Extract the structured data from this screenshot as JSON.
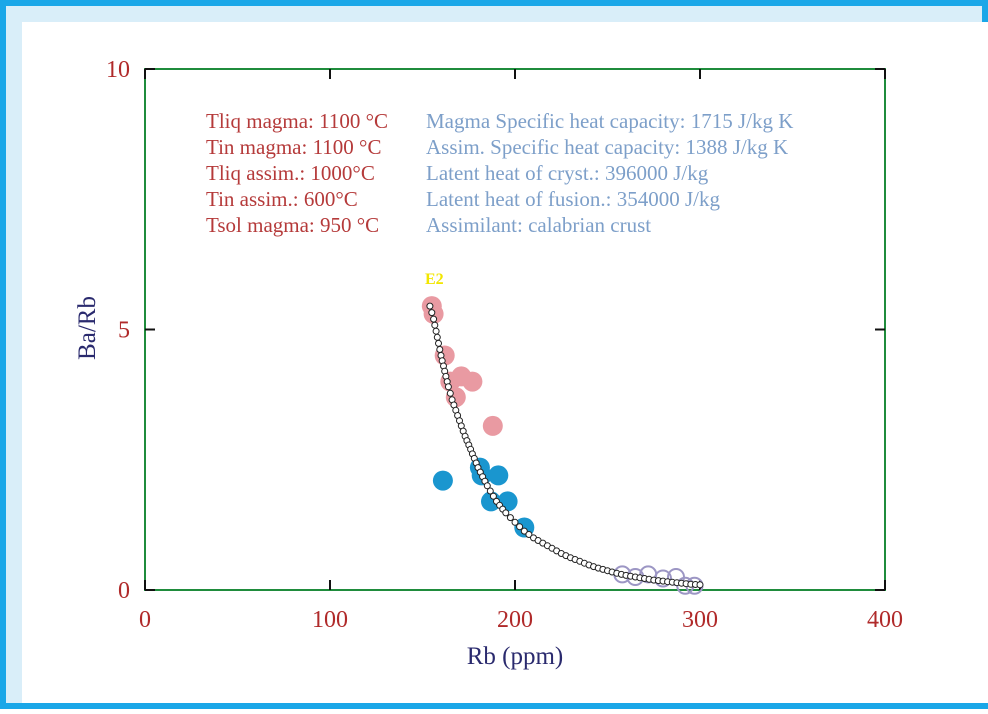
{
  "colors": {
    "frame": "#1aa7e8",
    "panel": "#d9eef9",
    "axes_frame": "#1f8c3c",
    "tick_label": "#b02a2a",
    "axis_title": "#2a2a6e",
    "param_red": "#b53a3a",
    "param_blue": "#7d9fc9",
    "pink_point": "#e99aa2",
    "blue_point": "#1a96cf",
    "hollow_point": "#9c96c4",
    "curve_point": "#222222",
    "start_label": "#f2e600"
  },
  "chart_data": {
    "type": "scatter",
    "xlabel": "Rb (ppm)",
    "ylabel": "Ba/Rb",
    "xlim": [
      0,
      400
    ],
    "ylim": [
      0,
      10
    ],
    "xticks": [
      "0",
      "100",
      "200",
      "300",
      "400"
    ],
    "yticks": [
      "0",
      "5",
      "10"
    ],
    "grid": false,
    "annotations": {
      "start_label": "E2",
      "parameters_left": [
        "Tliq magma: 1100 °C",
        "Tin magma: 1100 °C",
        "Tliq assim.: 1000°C",
        "Tin assim.: 600°C",
        "Tsol magma: 950 °C"
      ],
      "parameters_right": [
        "Magma Specific heat capacity: 1715 J/kg K",
        "Assim. Specific heat capacity: 1388 J/kg K",
        "Latent heat of cryst.: 396000 J/kg",
        "Latent heat of fusion.: 354000 J/kg",
        "Assimilant: calabrian crust"
      ]
    },
    "series": [
      {
        "style": "pink-filled",
        "points": [
          [
            155,
            5.45
          ],
          [
            156,
            5.3
          ],
          [
            162,
            4.5
          ],
          [
            165,
            4.0
          ],
          [
            168,
            3.7
          ],
          [
            171,
            4.1
          ],
          [
            177,
            4.0
          ],
          [
            188,
            3.15
          ]
        ]
      },
      {
        "style": "blue-filled",
        "points": [
          [
            161,
            2.1
          ],
          [
            181,
            2.35
          ],
          [
            182,
            2.2
          ],
          [
            187,
            1.7
          ],
          [
            191,
            2.2
          ],
          [
            196,
            1.7
          ],
          [
            205,
            1.2
          ]
        ]
      },
      {
        "style": "hollow",
        "points": [
          [
            258,
            0.3
          ],
          [
            265,
            0.25
          ],
          [
            272,
            0.3
          ],
          [
            280,
            0.22
          ],
          [
            287,
            0.25
          ],
          [
            292,
            0.08
          ],
          [
            297,
            0.08
          ]
        ]
      },
      {
        "style": "model-curve",
        "points": [
          [
            154,
            5.45
          ],
          [
            156,
            5.2
          ],
          [
            158,
            4.85
          ],
          [
            160,
            4.5
          ],
          [
            162,
            4.2
          ],
          [
            164,
            3.9
          ],
          [
            166,
            3.65
          ],
          [
            168,
            3.45
          ],
          [
            170,
            3.25
          ],
          [
            173,
            2.95
          ],
          [
            176,
            2.7
          ],
          [
            180,
            2.35
          ],
          [
            185,
            2.0
          ],
          [
            190,
            1.7
          ],
          [
            195,
            1.48
          ],
          [
            200,
            1.3
          ],
          [
            205,
            1.13
          ],
          [
            210,
            1.0
          ],
          [
            215,
            0.9
          ],
          [
            220,
            0.8
          ],
          [
            225,
            0.7
          ],
          [
            230,
            0.62
          ],
          [
            235,
            0.55
          ],
          [
            240,
            0.48
          ],
          [
            245,
            0.42
          ],
          [
            250,
            0.37
          ],
          [
            255,
            0.32
          ],
          [
            260,
            0.28
          ],
          [
            265,
            0.25
          ],
          [
            270,
            0.22
          ],
          [
            275,
            0.19
          ],
          [
            280,
            0.17
          ],
          [
            285,
            0.15
          ],
          [
            290,
            0.13
          ],
          [
            295,
            0.11
          ],
          [
            300,
            0.1
          ]
        ]
      }
    ]
  }
}
